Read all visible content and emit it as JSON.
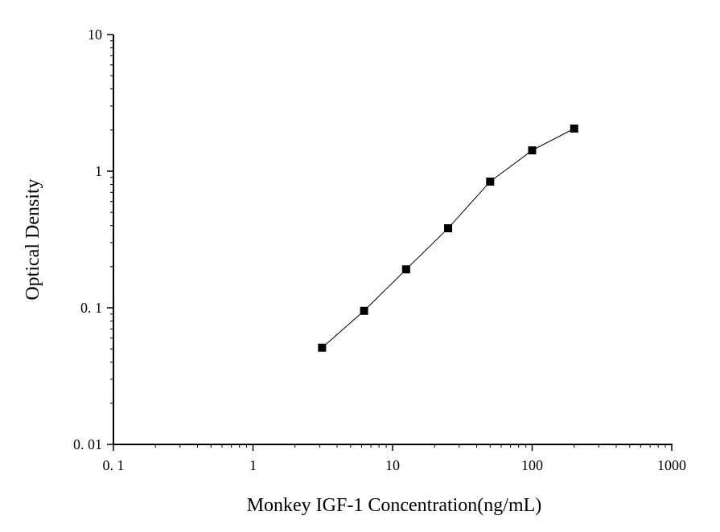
{
  "chart_data": {
    "type": "line",
    "title": "",
    "xlabel": "Monkey IGF-1 Concentration(ng/mL)",
    "ylabel": "Optical Density",
    "xscale": "log",
    "yscale": "log",
    "xlim": [
      0.1,
      1000
    ],
    "ylim": [
      0.01,
      10
    ],
    "x_tick_labels": [
      "0. 1",
      "1",
      "10",
      "100",
      "1000"
    ],
    "y_tick_labels": [
      "0. 01",
      "0. 1",
      "1",
      "10"
    ],
    "grid": false,
    "marker": "square",
    "series": [
      {
        "x": [
          3.125,
          6.25,
          12.5,
          25,
          50,
          100,
          200
        ],
        "y": [
          0.051,
          0.095,
          0.191,
          0.382,
          0.839,
          1.42,
          2.05
        ]
      }
    ],
    "colors": {
      "line": "#000000",
      "marker": "#000000"
    }
  }
}
